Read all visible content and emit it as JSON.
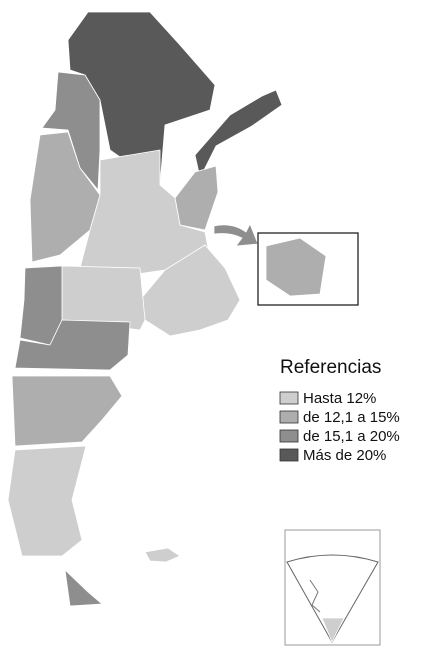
{
  "legend": {
    "title": "Referencias",
    "items": [
      {
        "label": "Hasta 12%",
        "color": "#cecece"
      },
      {
        "label": "de 12,1 a 15%",
        "color": "#aeaeae"
      },
      {
        "label": "de 15,1 a 20%",
        "color": "#8e8e8e"
      },
      {
        "label": "Más de 20%",
        "color": "#595959"
      }
    ]
  }
}
